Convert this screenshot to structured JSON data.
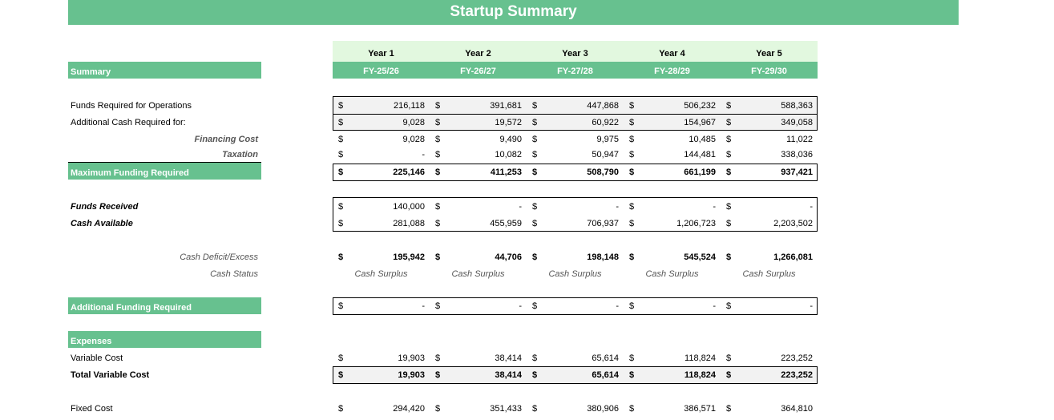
{
  "title": "Startup Summary",
  "years": [
    {
      "label": "Year 1",
      "fy": "FY-25/26"
    },
    {
      "label": "Year 2",
      "fy": "FY-26/27"
    },
    {
      "label": "Year 3",
      "fy": "FY-27/28"
    },
    {
      "label": "Year 4",
      "fy": "FY-28/29"
    },
    {
      "label": "Year 5",
      "fy": "FY-29/30"
    }
  ],
  "sections": {
    "summary": "Summary",
    "max_funding": "Maximum Funding Required",
    "additional_funding": "Additional Funding Required",
    "expenses": "Expenses"
  },
  "currency": "$",
  "rows": {
    "funds_required": {
      "label": "Funds Required for Operations",
      "values": [
        "216,118",
        "391,681",
        "447,868",
        "506,232",
        "588,363"
      ]
    },
    "additional_cash": {
      "label": "Additional Cash Required for:",
      "values": [
        "9,028",
        "19,572",
        "60,922",
        "154,967",
        "349,058"
      ]
    },
    "financing_cost": {
      "label": "Financing Cost",
      "values": [
        "9,028",
        "9,490",
        "9,975",
        "10,485",
        "11,022"
      ]
    },
    "taxation": {
      "label": "Taxation",
      "values": [
        "-",
        "10,082",
        "50,947",
        "144,481",
        "338,036"
      ]
    },
    "max_funding": {
      "values": [
        "225,146",
        "411,253",
        "508,790",
        "661,199",
        "937,421"
      ]
    },
    "funds_received": {
      "label": "Funds Received",
      "values": [
        "140,000",
        "-",
        "-",
        "-",
        "-"
      ]
    },
    "cash_available": {
      "label": "Cash Available",
      "values": [
        "281,088",
        "455,959",
        "706,937",
        "1,206,723",
        "2,203,502"
      ]
    },
    "cash_deficit": {
      "label": "Cash Deficit/Excess",
      "values": [
        "195,942",
        "44,706",
        "198,148",
        "545,524",
        "1,266,081"
      ]
    },
    "cash_status": {
      "label": "Cash Status",
      "values": [
        "Cash Surplus",
        "Cash Surplus",
        "Cash Surplus",
        "Cash Surplus",
        "Cash Surplus"
      ]
    },
    "additional_funding": {
      "values": [
        "-",
        "-",
        "-",
        "-",
        "-"
      ]
    },
    "variable_cost": {
      "label": "Variable Cost",
      "values": [
        "19,903",
        "38,414",
        "65,614",
        "118,824",
        "223,252"
      ]
    },
    "total_variable_cost": {
      "label": "Total Variable Cost",
      "values": [
        "19,903",
        "38,414",
        "65,614",
        "118,824",
        "223,252"
      ]
    },
    "fixed_cost": {
      "label": "Fixed Cost",
      "values": [
        "294,420",
        "351,433",
        "380,906",
        "386,571",
        "364,810"
      ]
    }
  }
}
